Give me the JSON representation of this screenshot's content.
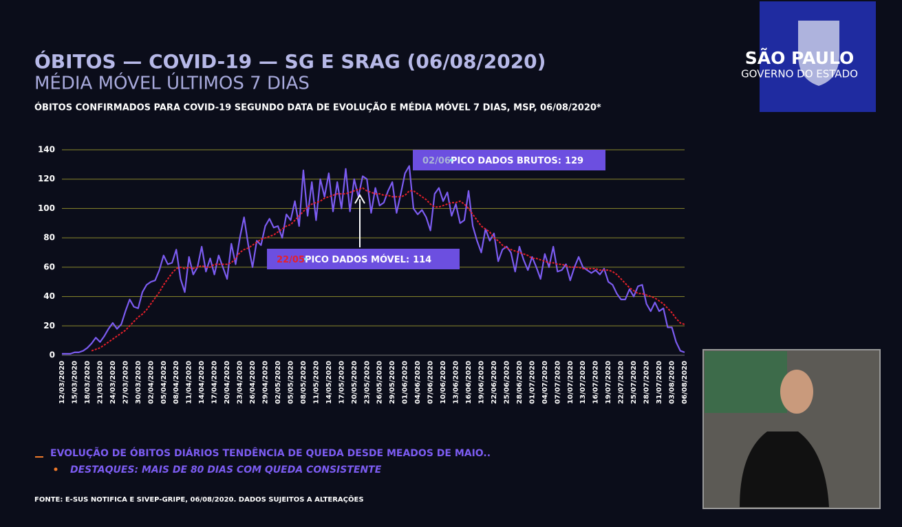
{
  "header": {
    "title": "ÓBITOS — COVID-19 — SG E SRAG (06/08/2020)",
    "subtitle": "MÉDIA MÓVEL ÚLTIMOS 7 DIAS",
    "chart_title": "ÓBITOS CONFIRMADOS PARA COVID-19 SEGUNDO DATA DE EVOLUÇÃO E MÉDIA MÓVEL 7 DIAS, MSP, 06/08/2020*"
  },
  "logo": {
    "line1": "SÃO PAULO",
    "line2": "GOVERNO DO ESTADO"
  },
  "chart_data": {
    "type": "line",
    "categories": [
      "12/03/2020",
      null,
      null,
      "15/03/2020",
      null,
      null,
      "18/03/2020",
      null,
      null,
      "21/03/2020",
      null,
      null,
      "24/03/2020",
      null,
      null,
      "27/03/2020",
      null,
      null,
      "30/03/2020",
      null,
      null,
      "02/04/2020",
      null,
      null,
      "05/04/2020",
      null,
      null,
      "08/04/2020",
      null,
      null,
      "11/04/2020",
      null,
      null,
      "14/04/2020",
      null,
      null,
      "17/04/2020",
      null,
      null,
      "20/04/2020",
      null,
      null,
      "23/04/2020",
      null,
      null,
      "26/04/2020",
      null,
      null,
      "29/04/2020",
      null,
      null,
      "02/05/2020",
      null,
      null,
      "05/05/2020",
      null,
      null,
      "08/05/2020",
      null,
      null,
      "11/05/2020",
      null,
      null,
      "14/05/2020",
      null,
      null,
      "17/05/2020",
      null,
      null,
      "20/05/2020",
      null,
      null,
      "23/05/2020",
      null,
      null,
      "26/05/2020",
      null,
      null,
      "29/05/2020",
      null,
      null,
      "01/06/2020",
      null,
      null,
      "04/06/2020",
      null,
      null,
      "07/06/2020",
      null,
      null,
      "10/06/2020",
      null,
      null,
      "13/06/2020",
      null,
      null,
      "16/06/2020",
      null,
      null,
      "19/06/2020",
      null,
      null,
      "22/06/2020",
      null,
      null,
      "25/06/2020",
      null,
      null,
      "28/06/2020",
      null,
      null,
      "01/07/2020",
      null,
      null,
      "04/07/2020",
      null,
      null,
      "07/07/2020",
      null,
      null,
      "10/07/2020",
      null,
      null,
      "13/07/2020",
      null,
      null,
      "16/07/2020",
      null,
      null,
      "19/07/2020",
      null,
      null,
      "22/07/2020",
      null,
      null,
      "25/07/2020",
      null,
      null,
      "28/07/2020",
      null,
      null,
      "31/07/2020",
      null,
      null,
      "03/08/2020",
      null,
      null,
      "06/08/2020"
    ],
    "series": [
      {
        "color": "#7c5cf2",
        "style": "solid",
        "values": [
          1,
          1,
          1,
          2,
          2,
          3,
          5,
          8,
          12,
          9,
          13,
          18,
          22,
          18,
          21,
          30,
          38,
          33,
          32,
          43,
          48,
          50,
          51,
          58,
          68,
          62,
          63,
          72,
          52,
          43,
          67,
          55,
          60,
          74,
          57,
          66,
          55,
          68,
          60,
          52,
          76,
          62,
          80,
          94,
          75,
          60,
          78,
          75,
          88,
          93,
          87,
          88,
          80,
          96,
          92,
          105,
          88,
          126,
          95,
          118,
          92,
          120,
          108,
          124,
          98,
          118,
          100,
          127,
          98,
          120,
          108,
          122,
          120,
          97,
          114,
          102,
          104,
          112,
          118,
          97,
          110,
          124,
          129,
          100,
          96,
          99,
          94,
          85,
          110,
          114,
          105,
          111,
          95,
          103,
          90,
          92,
          112,
          88,
          78,
          70,
          86,
          78,
          83,
          64,
          72,
          74,
          70,
          57,
          74,
          65,
          58,
          67,
          60,
          52,
          69,
          60,
          74,
          57,
          58,
          62,
          51,
          60,
          67,
          60,
          58,
          56,
          58,
          55,
          59,
          50,
          48,
          42,
          38,
          38,
          45,
          40,
          47,
          48,
          35,
          30,
          36,
          30,
          32,
          19,
          19,
          9,
          3,
          2
        ]
      },
      {
        "color": "#e8202a",
        "style": "dashed",
        "values": [
          null,
          null,
          null,
          null,
          null,
          null,
          null,
          3,
          4,
          5,
          7,
          9,
          11,
          13,
          15,
          17,
          20,
          23,
          26,
          28,
          31,
          35,
          39,
          43,
          48,
          52,
          56,
          59,
          60,
          59,
          60,
          59,
          60,
          61,
          60,
          60,
          62,
          62,
          62,
          62,
          63,
          66,
          70,
          72,
          73,
          75,
          77,
          79,
          80,
          81,
          82,
          84,
          86,
          88,
          89,
          92,
          95,
          98,
          101,
          103,
          104,
          105,
          107,
          108,
          109,
          110,
          110,
          110,
          111,
          112,
          113,
          114,
          112,
          111,
          110,
          110,
          109,
          109,
          108,
          108,
          108,
          109,
          112,
          112,
          110,
          108,
          106,
          103,
          101,
          101,
          102,
          103,
          104,
          104,
          105,
          103,
          100,
          96,
          92,
          88,
          86,
          84,
          80,
          78,
          75,
          73,
          72,
          71,
          70,
          69,
          68,
          66,
          66,
          65,
          64,
          63,
          63,
          62,
          62,
          61,
          60,
          60,
          60,
          59,
          59,
          59,
          59,
          58,
          58,
          58,
          57,
          55,
          52,
          49,
          46,
          44,
          42,
          42,
          41,
          40,
          39,
          37,
          35,
          32,
          29,
          25,
          22,
          21
        ]
      }
    ],
    "ylim": [
      0,
      140
    ],
    "yticks": [
      0,
      20,
      40,
      60,
      80,
      100,
      120,
      140
    ],
    "grid": true,
    "annotations": [
      {
        "date": "02/06",
        "text": "PICO DADOS BRUTOS:",
        "value": 129
      },
      {
        "date": "22/05",
        "text": "PICO DADOS MÓVEL:",
        "value": 114
      }
    ]
  },
  "notes": [
    "EVOLUÇÃO DE ÓBITOS DIÁRIOS TENDÊNCIA DE QUEDA DESDE MEADOS DE MAIO..",
    "DESTAQUES: MAIS DE 80 DIAS COM QUEDA CONSISTENTE"
  ],
  "source": "FONTE: E-SUS NOTIFICA E SIVEP-GRIPE, 06/08/2020. DADOS SUJEITOS A ALTERAÇÕES"
}
